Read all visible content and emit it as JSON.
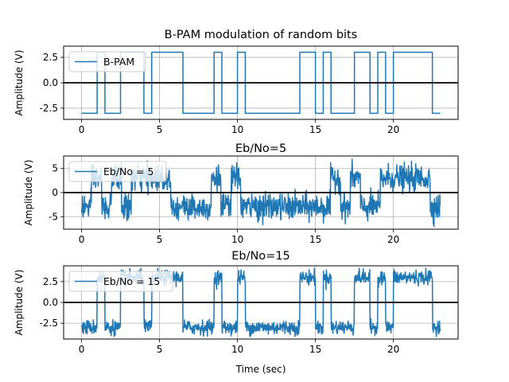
{
  "figure": {
    "xlabel": "Time (sec)",
    "line_color": "#1f77b4",
    "zero_line_color": "#000000",
    "grid_color": "#b0b0b0"
  },
  "chart_data": [
    {
      "type": "line",
      "title": "B-PAM modulation of random bits",
      "ylabel": "Amplitude (V)",
      "xlabel": "",
      "xlim": [
        -1.15,
        24.15
      ],
      "ylim": [
        -3.6,
        3.6
      ],
      "xticks": [
        "0",
        "5",
        "10",
        "15",
        "20"
      ],
      "yticks": [
        "2.5",
        "0.0",
        "-2.5"
      ],
      "ytick_values": [
        2.5,
        0.0,
        -2.5
      ],
      "legend": "B-PAM",
      "legend_position": "top-left",
      "grid": true,
      "noise_sigma": 0,
      "series": [
        {
          "name": "B-PAM",
          "x": [
            0,
            1,
            1,
            1.5,
            1.5,
            2.5,
            2.5,
            4,
            4,
            4.5,
            4.5,
            6.5,
            6.5,
            8.5,
            8.5,
            9,
            9,
            10,
            10,
            10.5,
            10.5,
            14,
            14,
            15,
            15,
            15.5,
            15.5,
            16,
            16,
            17.5,
            17.5,
            18.5,
            18.5,
            19,
            19,
            19.5,
            19.5,
            20,
            20,
            22.5,
            22.5,
            23
          ],
          "y": [
            -3,
            -3,
            3,
            3,
            -3,
            -3,
            3,
            3,
            -3,
            -3,
            3,
            3,
            -3,
            -3,
            3,
            3,
            -3,
            -3,
            3,
            3,
            -3,
            -3,
            3,
            3,
            -3,
            -3,
            3,
            3,
            -3,
            -3,
            3,
            3,
            -3,
            -3,
            3,
            3,
            -3,
            -3,
            3,
            3,
            -3,
            -3
          ]
        }
      ]
    },
    {
      "type": "line",
      "title": "Eb/No=5",
      "ylabel": "Amplitude (V)",
      "xlabel": "",
      "xlim": [
        -1.15,
        24.15
      ],
      "ylim": [
        -7.6,
        7.6
      ],
      "xticks": [
        "0",
        "5",
        "10",
        "15",
        "20"
      ],
      "yticks": [
        "5",
        "0",
        "-5"
      ],
      "ytick_values": [
        5,
        0,
        -5
      ],
      "legend": "Eb/No = 5",
      "legend_position": "top-left",
      "grid": true,
      "noise_sigma": 1.35,
      "bit_levels": [
        -3,
        3,
        -3,
        3,
        -3,
        3,
        3,
        3,
        3,
        -3,
        -3,
        -3,
        -3,
        3,
        -3,
        3,
        -3,
        -3,
        -3,
        -3,
        -3,
        -3,
        -3,
        -3,
        -3,
        3,
        -3,
        3,
        -3,
        -3,
        3,
        3,
        3,
        3,
        3,
        -3
      ]
    },
    {
      "type": "line",
      "title": "Eb/No=15",
      "ylabel": "Amplitude (V)",
      "xlabel": "Time (sec)",
      "xlim": [
        -1.15,
        24.15
      ],
      "ylim": [
        -4.4,
        4.4
      ],
      "xticks": [
        "0",
        "5",
        "10",
        "15",
        "20"
      ],
      "yticks": [
        "2.5",
        "0.0",
        "-2.5"
      ],
      "ytick_values": [
        2.5,
        0.0,
        -2.5
      ],
      "legend": "Eb/No = 15",
      "legend_position": "top-left",
      "grid": true,
      "noise_sigma": 0.43
    }
  ]
}
